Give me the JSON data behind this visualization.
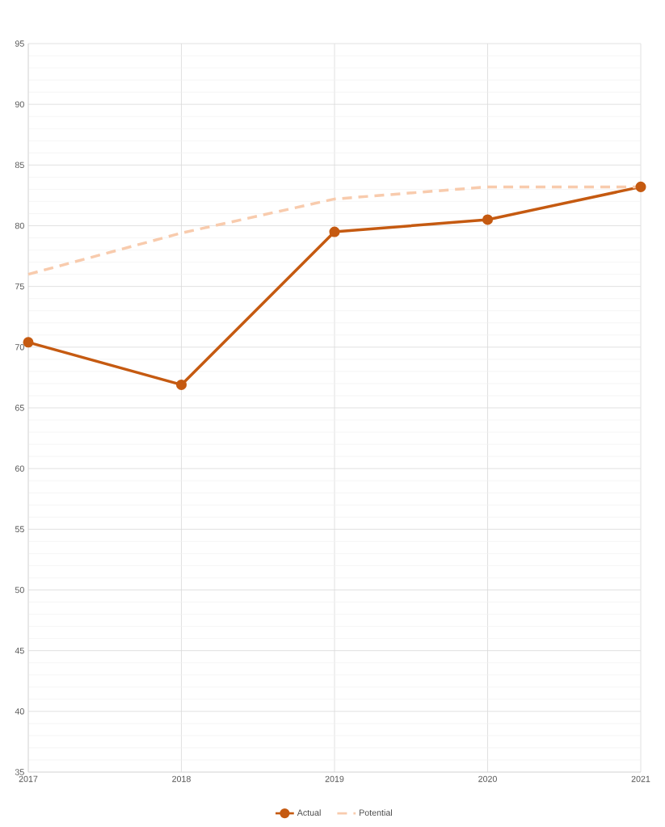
{
  "chart_data": {
    "type": "line",
    "categories": [
      "2017",
      "2018",
      "2019",
      "2020",
      "2021"
    ],
    "series": [
      {
        "name": "Actual",
        "color": "#c55a11",
        "values": [
          70.4,
          66.9,
          79.5,
          80.5,
          83.2
        ],
        "marker": "circle",
        "line_style": "solid"
      },
      {
        "name": "Potential",
        "color": "#f8cbad",
        "values": [
          76.0,
          79.4,
          82.2,
          83.2,
          83.2
        ],
        "marker": "none",
        "line_style": "dashed"
      }
    ],
    "ylim": [
      35,
      95
    ],
    "yticks": [
      35,
      40,
      45,
      50,
      55,
      60,
      65,
      70,
      75,
      80,
      85,
      90,
      95
    ],
    "grid": true,
    "legend": "bottom"
  }
}
